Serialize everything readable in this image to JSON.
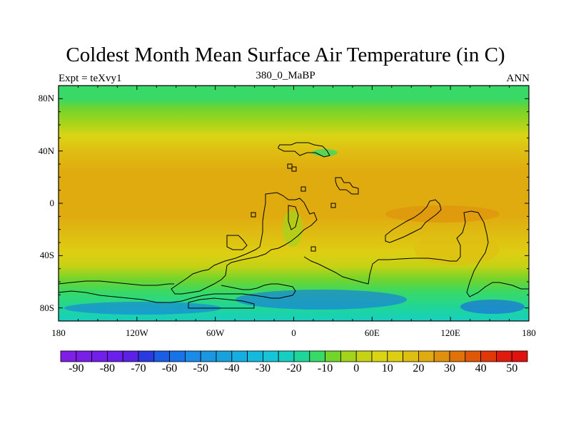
{
  "title": "Coldest Month Mean Surface Air Temperature (in C)",
  "left_label": "Expt = teXvy1",
  "center_label": "380_0_MaBP",
  "right_label": "ANN",
  "map": {
    "projection": "cylindrical-equidistant",
    "lon_range": [
      -180,
      180
    ],
    "lat_range": [
      -90,
      90
    ],
    "lat_ticks": [
      {
        "value": 80,
        "label": "80N"
      },
      {
        "value": 40,
        "label": "40N"
      },
      {
        "value": 0,
        "label": "0"
      },
      {
        "value": -40,
        "label": "40S"
      },
      {
        "value": -80,
        "label": "80S"
      }
    ],
    "lon_ticks": [
      {
        "value": -180,
        "label": "180"
      },
      {
        "value": -120,
        "label": "120W"
      },
      {
        "value": -60,
        "label": "60W"
      },
      {
        "value": 0,
        "label": "0"
      },
      {
        "value": 60,
        "label": "60E"
      },
      {
        "value": 120,
        "label": "120E"
      },
      {
        "value": 180,
        "label": "180"
      }
    ],
    "zonal_temperature_c": [
      {
        "lat": 90,
        "temp": -14
      },
      {
        "lat": 80,
        "temp": -12
      },
      {
        "lat": 72,
        "temp": -8
      },
      {
        "lat": 62,
        "temp": -2
      },
      {
        "lat": 52,
        "temp": 8
      },
      {
        "lat": 40,
        "temp": 15
      },
      {
        "lat": 25,
        "temp": 20
      },
      {
        "lat": 10,
        "temp": 24
      },
      {
        "lat": 0,
        "temp": 23
      },
      {
        "lat": -10,
        "temp": 21
      },
      {
        "lat": -25,
        "temp": 16
      },
      {
        "lat": -38,
        "temp": 10
      },
      {
        "lat": -48,
        "temp": 2
      },
      {
        "lat": -58,
        "temp": -6
      },
      {
        "lat": -68,
        "temp": -12
      },
      {
        "lat": -80,
        "temp": -18
      },
      {
        "lat": -90,
        "temp": -22
      }
    ]
  },
  "colorbar": {
    "min": -95,
    "max": 55,
    "step": 5,
    "tick_values": [
      -90,
      -80,
      -70,
      -60,
      -50,
      -40,
      -30,
      -20,
      -10,
      0,
      10,
      20,
      30,
      40,
      50
    ],
    "tick_labels": [
      "-90",
      "-80",
      "-70",
      "-60",
      "-50",
      "-40",
      "-30",
      "-20",
      "-10",
      "0",
      "10",
      "20",
      "30",
      "40",
      "50"
    ],
    "colors": [
      "#7f1fe6",
      "#7a1fe8",
      "#731ee9",
      "#6a20ea",
      "#5b22e6",
      "#2a39e0",
      "#1a5ee6",
      "#1673e8",
      "#1a8be6",
      "#1a97e0",
      "#17a2dd",
      "#14aee0",
      "#15b9de",
      "#15c4d6",
      "#17cfc0",
      "#1fd69a",
      "#38d966",
      "#73d42b",
      "#a3d41b",
      "#c6d214",
      "#d9d515",
      "#dece13",
      "#dfbe12",
      "#e0ab0f",
      "#e0900c",
      "#e07209",
      "#e05707",
      "#e03806",
      "#e01a0c",
      "#e0120e"
    ]
  }
}
